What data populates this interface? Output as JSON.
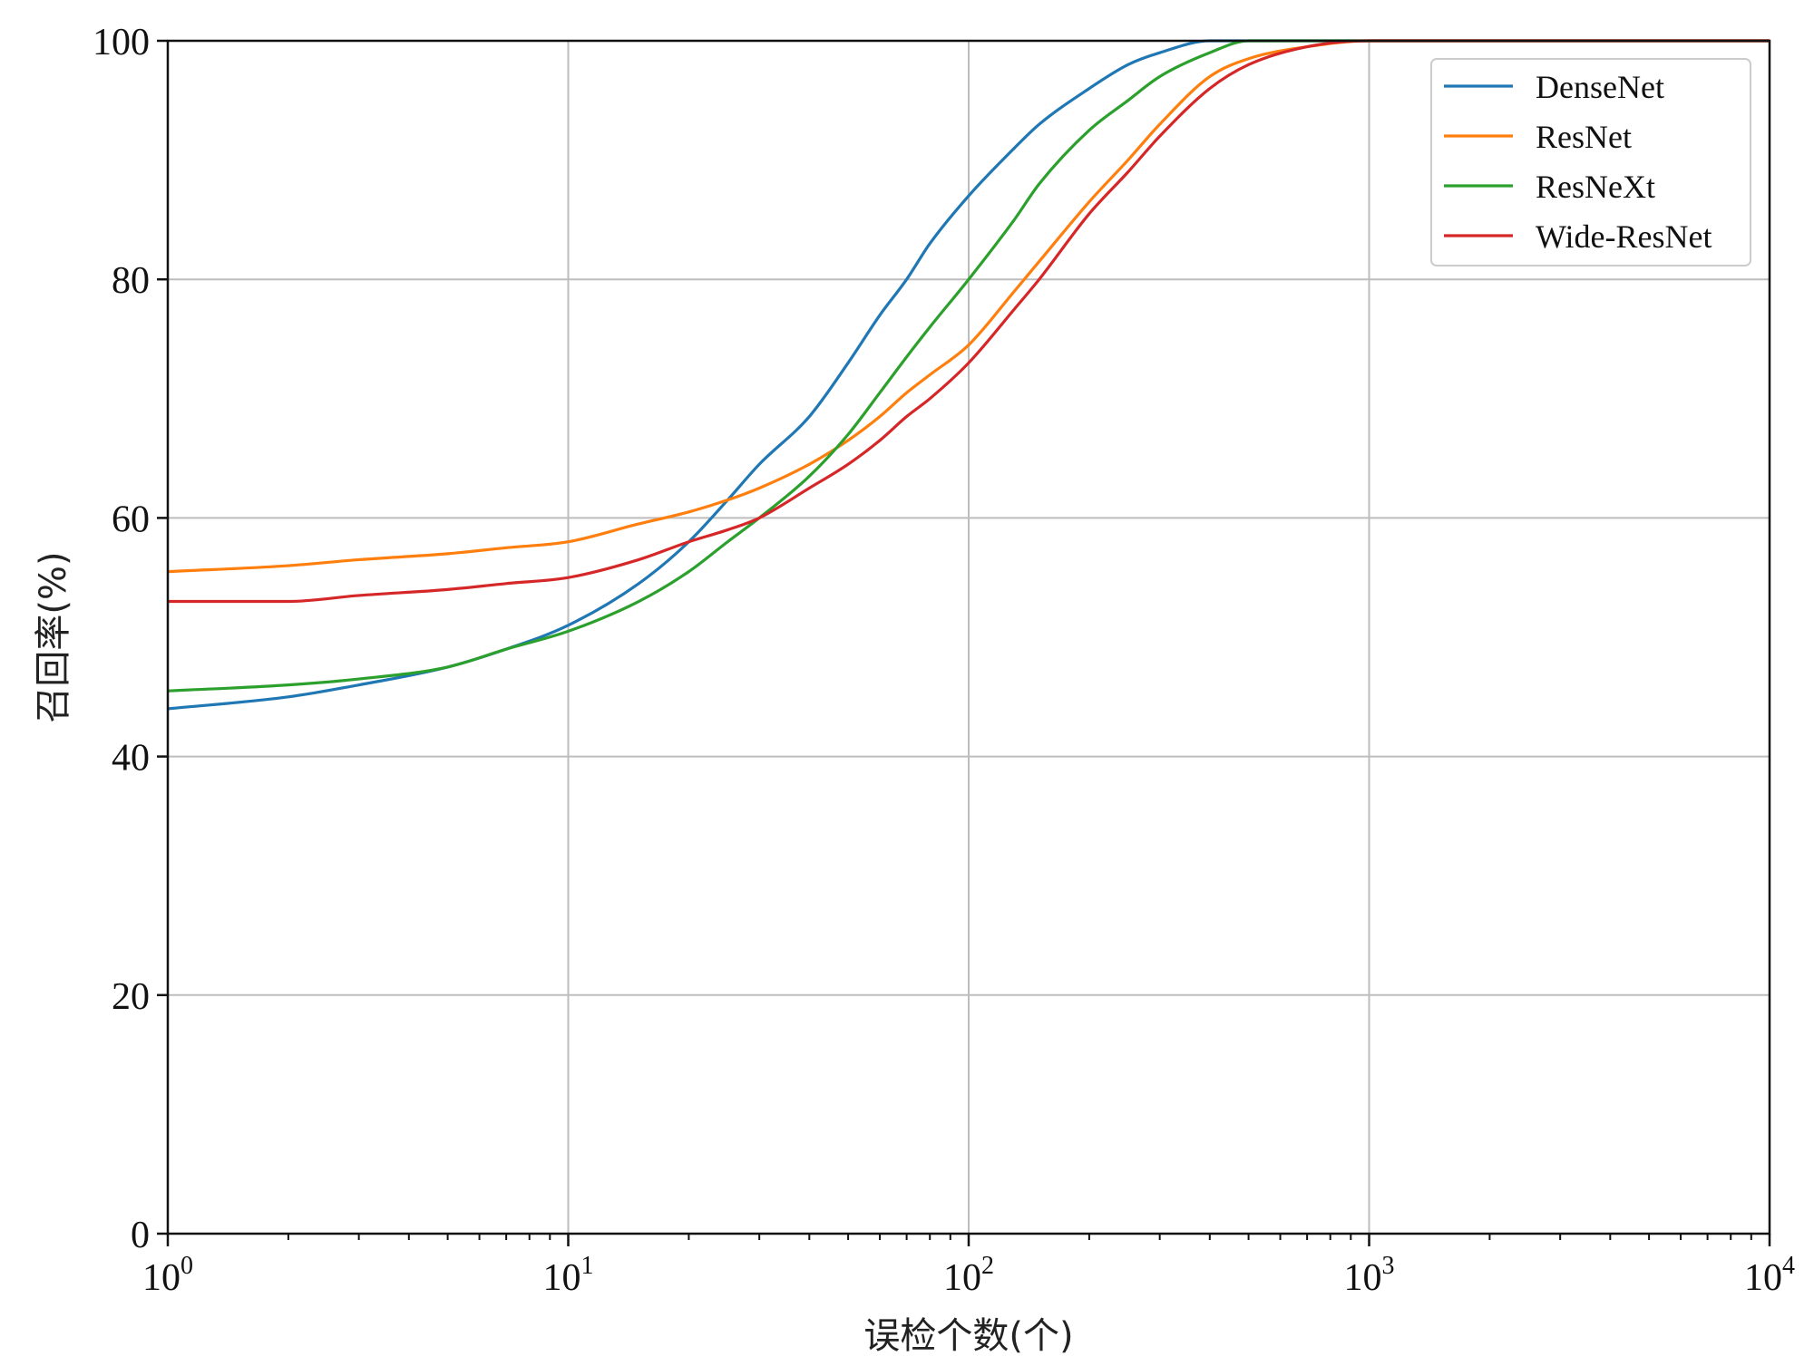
{
  "chart_data": {
    "type": "line",
    "title": "",
    "xlabel": "误检个数(个)",
    "ylabel": "召回率(%)",
    "xscale": "log",
    "xlim": [
      1,
      10000
    ],
    "ylim": [
      0,
      100
    ],
    "grid": true,
    "legend_position": "top-right",
    "x_ticks": [
      {
        "value": 1,
        "base": "10",
        "exp": "0"
      },
      {
        "value": 10,
        "base": "10",
        "exp": "1"
      },
      {
        "value": 100,
        "base": "10",
        "exp": "2"
      },
      {
        "value": 1000,
        "base": "10",
        "exp": "3"
      },
      {
        "value": 10000,
        "base": "10",
        "exp": "4"
      }
    ],
    "y_ticks": [
      {
        "value": 0,
        "label": "0"
      },
      {
        "value": 20,
        "label": "20"
      },
      {
        "value": 40,
        "label": "40"
      },
      {
        "value": 60,
        "label": "60"
      },
      {
        "value": 80,
        "label": "80"
      },
      {
        "value": 100,
        "label": "100"
      }
    ],
    "series": [
      {
        "name": "DenseNet",
        "color": "#1f77b4",
        "x": [
          1,
          2,
          3,
          5,
          7,
          10,
          15,
          20,
          25,
          30,
          40,
          50,
          60,
          70,
          80,
          100,
          130,
          150,
          200,
          250,
          300,
          400,
          500,
          700,
          1000,
          10000
        ],
        "y": [
          44,
          45,
          46,
          47.5,
          49,
          51,
          54.5,
          58,
          61.5,
          64.5,
          68.5,
          73,
          77,
          80,
          83,
          87,
          91,
          93,
          96,
          98,
          99,
          100,
          100,
          100,
          100,
          100
        ]
      },
      {
        "name": "ResNet",
        "color": "#ff7f0e",
        "x": [
          1,
          2,
          3,
          5,
          7,
          10,
          15,
          20,
          25,
          30,
          40,
          50,
          60,
          70,
          80,
          100,
          130,
          150,
          200,
          250,
          300,
          400,
          500,
          700,
          1000,
          10000
        ],
        "y": [
          55.5,
          56,
          56.5,
          57,
          57.5,
          58,
          59.5,
          60.5,
          61.5,
          62.5,
          64.5,
          66.5,
          68.5,
          70.5,
          72,
          74.5,
          79,
          81.5,
          86.5,
          90,
          93,
          97,
          98.5,
          99.5,
          100,
          100
        ]
      },
      {
        "name": "ResNeXt",
        "color": "#2ca02c",
        "x": [
          1,
          2,
          3,
          5,
          7,
          10,
          15,
          20,
          25,
          30,
          40,
          50,
          60,
          70,
          80,
          100,
          130,
          150,
          200,
          250,
          300,
          400,
          500,
          700,
          1000,
          10000
        ],
        "y": [
          45.5,
          46,
          46.5,
          47.5,
          49,
          50.5,
          53,
          55.5,
          58,
          60,
          63.5,
          67,
          70.5,
          73.5,
          76,
          80,
          85,
          88,
          92.5,
          95,
          97,
          99,
          100,
          100,
          100,
          100
        ]
      },
      {
        "name": "Wide-ResNet",
        "color": "#d62728",
        "x": [
          1,
          2,
          3,
          5,
          7,
          10,
          15,
          20,
          25,
          30,
          40,
          50,
          60,
          70,
          80,
          100,
          130,
          150,
          200,
          250,
          300,
          400,
          500,
          700,
          1000,
          10000
        ],
        "y": [
          53,
          53,
          53.5,
          54,
          54.5,
          55,
          56.5,
          58,
          59,
          60,
          62.5,
          64.5,
          66.5,
          68.5,
          70,
          73,
          77.5,
          80,
          85.5,
          89,
          92,
          96,
          98,
          99.5,
          100,
          100
        ]
      }
    ]
  }
}
